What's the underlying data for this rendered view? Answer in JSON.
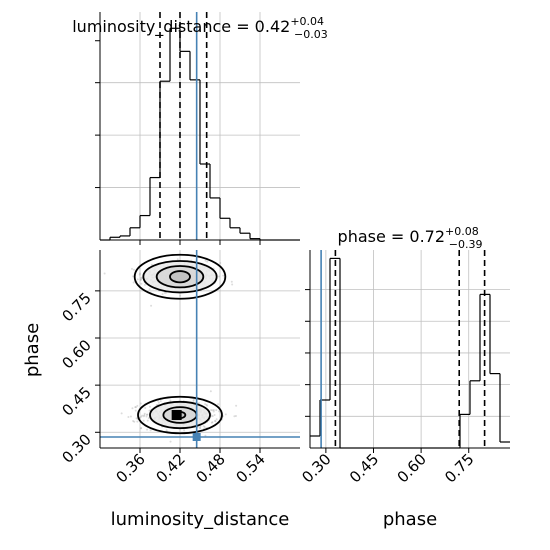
{
  "chart_data": {
    "type": "corner",
    "parameters": [
      "luminosity_distance",
      "phase"
    ],
    "truth": {
      "luminosity_distance": 0.445,
      "phase": 0.285
    },
    "colors": {
      "truth": "#4682b4",
      "hist": "#000000",
      "grid": "#c0c0c0",
      "samples": "#9a9a9a"
    },
    "panels": [
      {
        "id": "luminosity_distance_hist",
        "type": "histogram",
        "title": {
          "text": "luminosity_distance = 0.42",
          "sup": "+0.04",
          "sub": "−0.03"
        },
        "xlim": [
          0.3,
          0.6
        ],
        "xticks": [
          0.36,
          0.42,
          0.48,
          0.54
        ],
        "quantiles": [
          0.39,
          0.42,
          0.46
        ],
        "bin_edges": [
          0.3,
          0.315,
          0.33,
          0.345,
          0.36,
          0.375,
          0.39,
          0.405,
          0.42,
          0.435,
          0.45,
          0.465,
          0.48,
          0.495,
          0.51,
          0.525,
          0.54,
          0.555,
          0.57,
          0.585,
          0.6
        ],
        "counts": [
          0,
          2,
          3,
          9,
          18,
          46,
          117,
          156,
          139,
          118,
          56,
          31,
          16,
          9,
          5,
          1,
          0,
          0,
          0,
          0
        ],
        "ymax": 168
      },
      {
        "id": "phase_vs_luminosity_distance",
        "type": "2d_contour",
        "xlabel": "luminosity_distance",
        "ylabel": "phase",
        "xlim": [
          0.3,
          0.6
        ],
        "ylim": [
          0.25,
          0.88
        ],
        "xticks": [
          0.36,
          0.42,
          0.48,
          0.54
        ],
        "yticks": [
          0.3,
          0.45,
          0.6,
          0.75
        ],
        "modes": [
          {
            "center": [
              0.42,
              0.795
            ],
            "radii_x": [
              0.015,
              0.035,
              0.055,
              0.068
            ],
            "radii_y": [
              0.018,
              0.034,
              0.05,
              0.07
            ]
          },
          {
            "center": [
              0.42,
              0.355
            ],
            "radii_x": [
              0.008,
              0.025,
              0.045,
              0.063
            ],
            "radii_y": [
              0.01,
              0.025,
              0.042,
              0.058
            ]
          }
        ],
        "peak_marker": [
          0.415,
          0.355
        ]
      },
      {
        "id": "phase_hist",
        "type": "histogram",
        "title": {
          "text": "phase = 0.72",
          "sup": "+0.08",
          "sub": "−0.39"
        },
        "xlim": [
          0.25,
          0.88
        ],
        "xticks": [
          0.3,
          0.45,
          0.6,
          0.75
        ],
        "quantiles": [
          0.33,
          0.72,
          0.8
        ],
        "bin_edges": [
          0.25,
          0.2815,
          0.313,
          0.3445,
          0.376,
          0.4075,
          0.439,
          0.4705,
          0.502,
          0.5335,
          0.565,
          0.5965,
          0.628,
          0.6595,
          0.691,
          0.7225,
          0.754,
          0.7855,
          0.817,
          0.8485,
          0.88
        ],
        "counts": [
          10,
          40,
          158,
          0,
          0,
          0,
          0,
          0,
          0,
          0,
          0,
          0,
          0,
          0,
          0,
          28,
          56,
          128,
          62,
          5
        ],
        "ymax": 165
      }
    ]
  }
}
